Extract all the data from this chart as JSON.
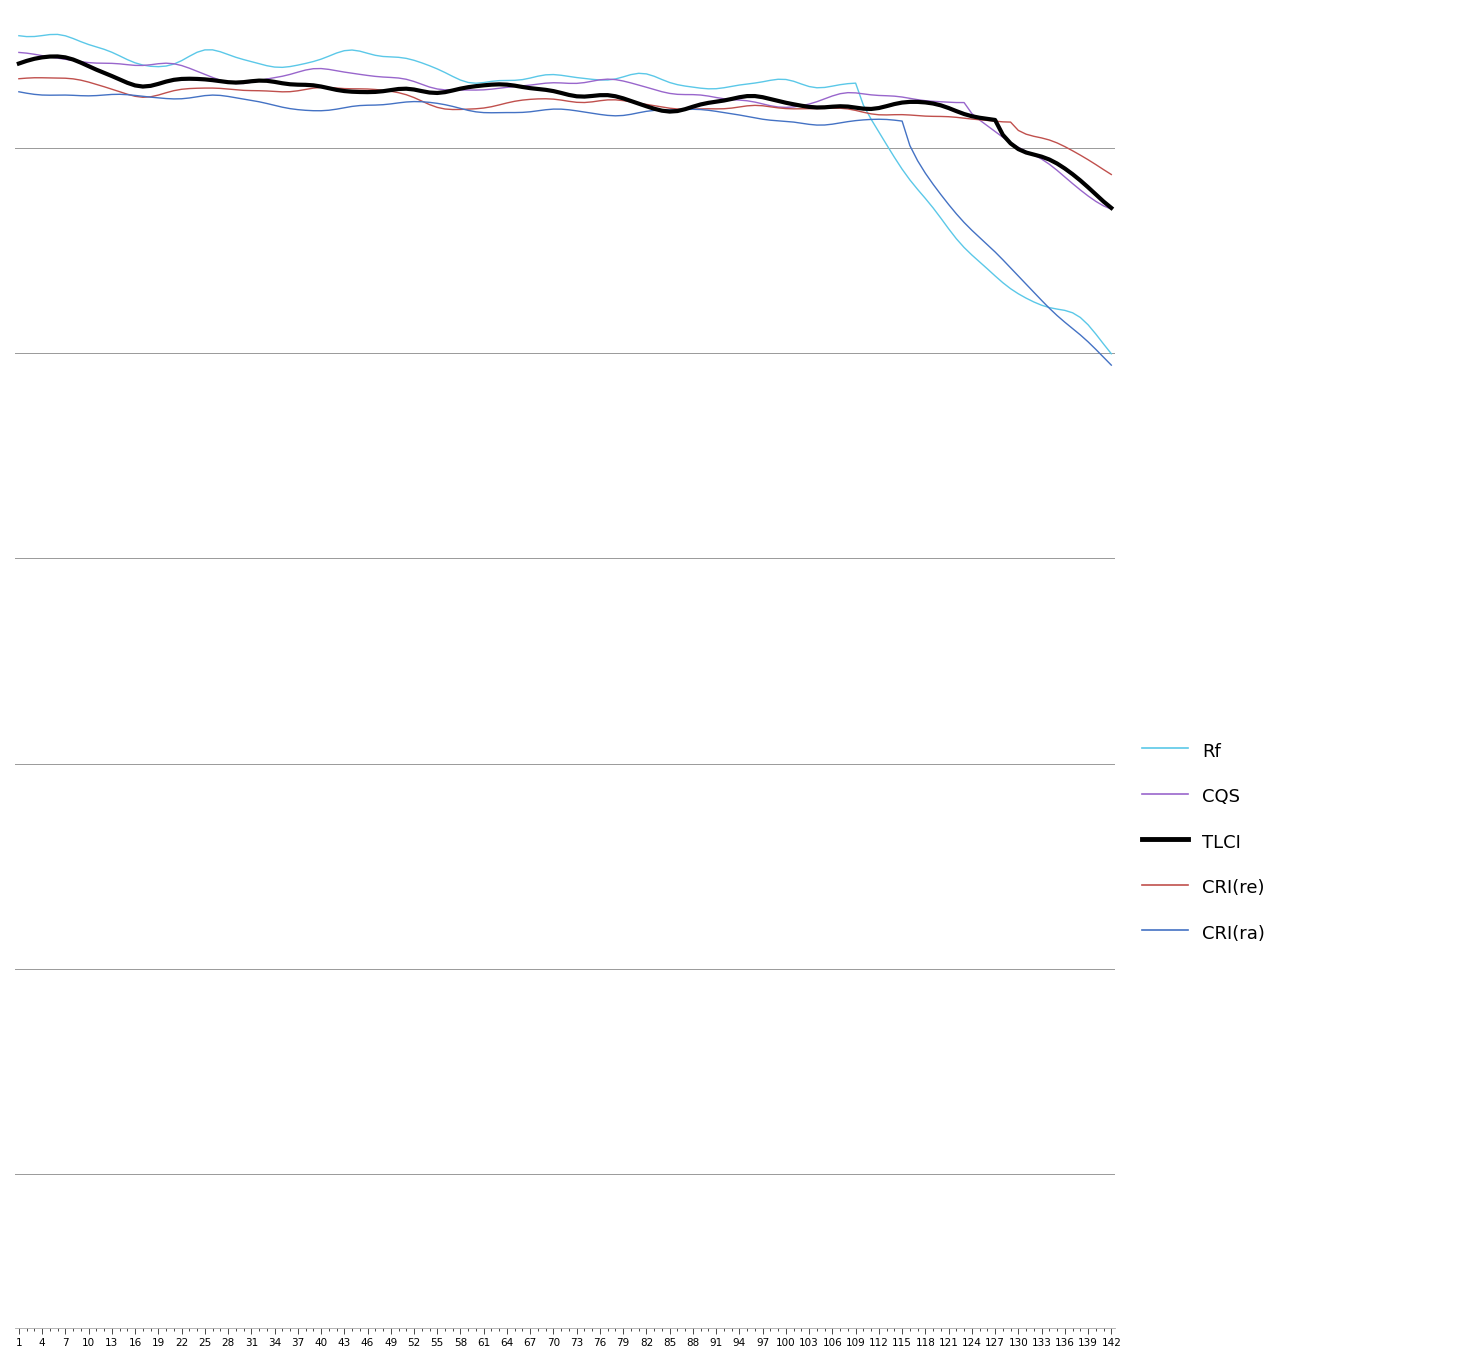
{
  "n": 142,
  "legend": [
    "Rf",
    "CQS",
    "TLCI",
    "CRI(re)",
    "CRI(ra)"
  ],
  "colors": [
    "#5BC8E8",
    "#9966CC",
    "#000000",
    "#C0504D",
    "#4472C4"
  ],
  "linewidths": [
    1.0,
    1.0,
    3.0,
    1.0,
    1.0
  ],
  "background_color": "#FFFFFF",
  "grid_color": "#999999",
  "figsize": [
    14.63,
    13.63
  ],
  "dpi": 100
}
